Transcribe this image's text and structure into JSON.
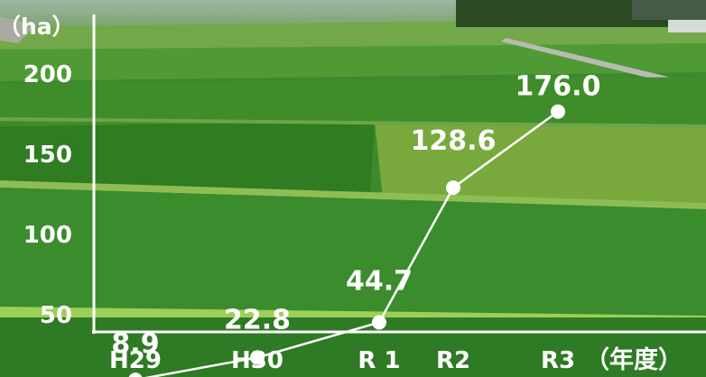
{
  "chart_data": {
    "type": "line",
    "title": "",
    "ylabel": "（ha）",
    "xlabel": "",
    "x_unit_label": "（年度）",
    "categories": [
      "H29",
      "H30",
      "R 1",
      "R2",
      "R3"
    ],
    "series": [
      {
        "values": [
          8.9,
          22.8,
          44.7,
          128.6,
          176.0
        ]
      }
    ],
    "data_labels": [
      "8.9",
      "22.8",
      "44.7",
      "128.6",
      "176.0"
    ],
    "y_ticks": [
      50,
      100,
      150,
      200
    ],
    "ylim": [
      0,
      218
    ],
    "grid": false,
    "legend": "none",
    "colors": {
      "line": "#ffffff",
      "axis": "#ffffff",
      "text": "#ffffff"
    },
    "background": "photo of green rice paddy fields"
  }
}
